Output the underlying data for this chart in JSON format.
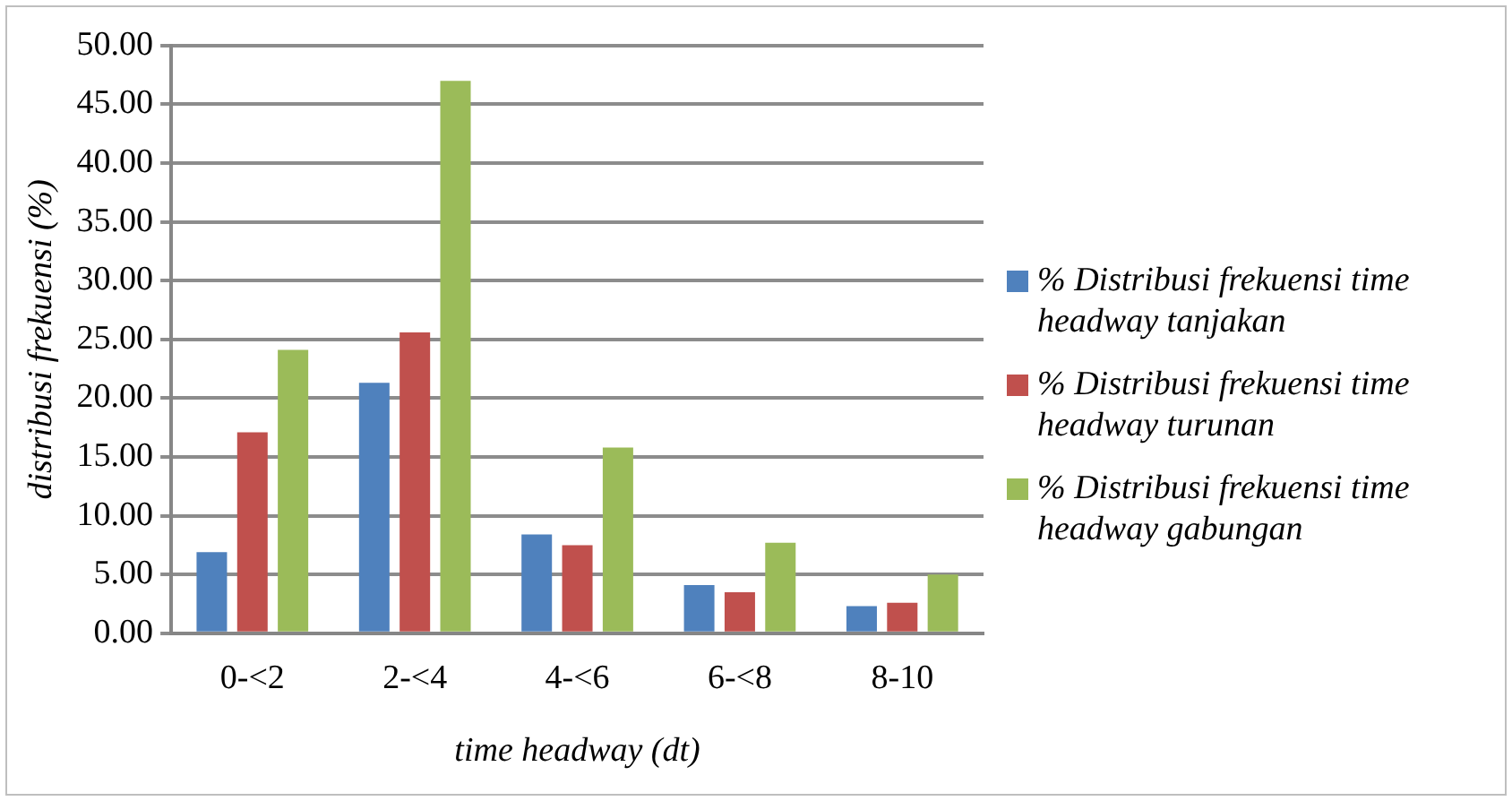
{
  "chart_data": {
    "type": "bar",
    "categories": [
      "0-<2",
      "2-<4",
      "4-<6",
      "6-<8",
      "8-10"
    ],
    "series": [
      {
        "name": "% Distribusi frekuensi time headway tanjakan",
        "color": "#4f81bd",
        "values": [
          6.9,
          21.3,
          8.4,
          4.1,
          2.3
        ]
      },
      {
        "name": "% Distribusi frekuensi time headway turunan",
        "color": "#c0504d",
        "values": [
          17.1,
          25.6,
          7.5,
          3.5,
          2.6
        ]
      },
      {
        "name": "% Distribusi frekuensi time headway gabungan",
        "color": "#9bbb59",
        "values": [
          24.1,
          47.0,
          15.8,
          7.7,
          5.0
        ]
      }
    ],
    "xlabel": "time headway (dt)",
    "ylabel": "distribusi frekuensi (%)",
    "ylim": [
      0,
      50
    ],
    "yticks": [
      {
        "value": 0,
        "label": "0.00"
      },
      {
        "value": 5,
        "label": "5.00"
      },
      {
        "value": 10,
        "label": "10.00"
      },
      {
        "value": 15,
        "label": "15.00"
      },
      {
        "value": 20,
        "label": "20.00"
      },
      {
        "value": 25,
        "label": "25.00"
      },
      {
        "value": 30,
        "label": "30.00"
      },
      {
        "value": 35,
        "label": "35.00"
      },
      {
        "value": 40,
        "label": "40.00"
      },
      {
        "value": 45,
        "label": "45.00"
      },
      {
        "value": 50,
        "label": "50.00"
      }
    ],
    "grid": "y",
    "legend": "right"
  }
}
